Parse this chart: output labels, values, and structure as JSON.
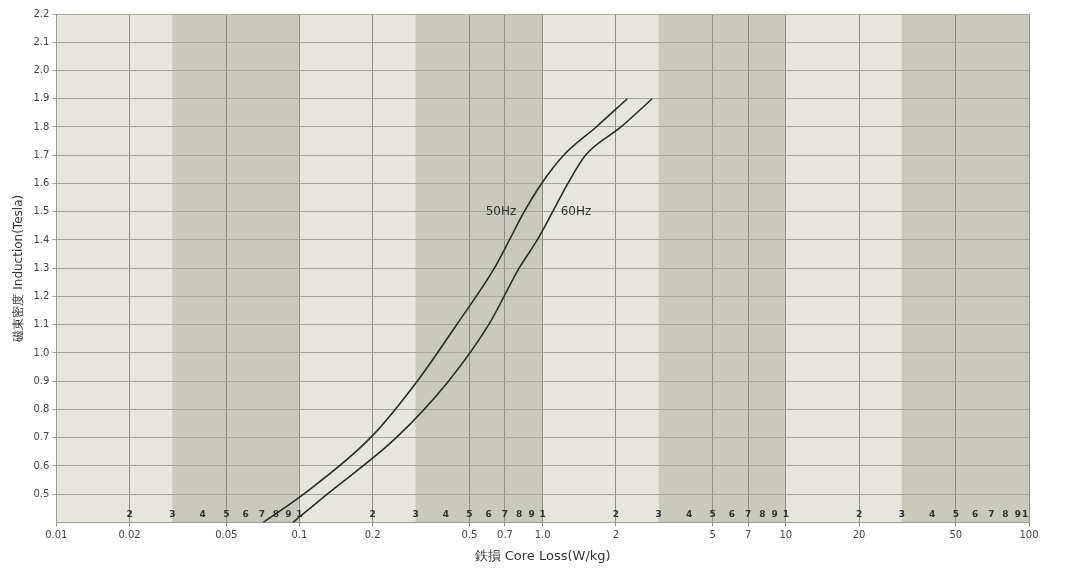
{
  "chart_data": {
    "type": "line",
    "xlabel": "鉄損 Core Loss(W/kg)",
    "ylabel": "磁束密度 Induction(Tesla)",
    "log": "x",
    "grid": true,
    "legend": false,
    "xlim": [
      0.01,
      100
    ],
    "ylim": [
      0.4,
      2.2
    ],
    "xticks": [
      0.01,
      0.02,
      0.05,
      0.1,
      0.2,
      0.5,
      0.7,
      {
        "value": 1,
        "label": "1.0"
      },
      2,
      5,
      7,
      10,
      20,
      50,
      100
    ],
    "yticks": [
      0.5,
      0.6,
      0.7,
      0.8,
      0.9,
      {
        "value": 1,
        "label": "1.0"
      },
      1.1,
      1.2,
      1.3,
      1.4,
      1.5,
      1.6,
      1.7,
      1.8,
      1.9,
      {
        "value": 2,
        "label": "2.0"
      },
      2.1,
      2.2
    ],
    "annotations": [
      "2",
      "3",
      "4",
      "5",
      "6",
      "7",
      "8",
      "9",
      "1",
      "2",
      "3",
      "4",
      "5",
      "6",
      "7",
      "8",
      "9",
      "1",
      "2",
      "3",
      "4",
      "5",
      "6",
      "7",
      "8",
      "9",
      "1",
      "2",
      "3",
      "4",
      "5",
      "6",
      "7",
      "8",
      "9",
      "1"
    ],
    "bands": [
      {
        "axis": "x",
        "from": 0.03,
        "to": 0.1,
        "color": "#c9c9bd"
      },
      {
        "axis": "x",
        "from": 0.3,
        "to": 1,
        "color": "#c9c9bd"
      },
      {
        "axis": "x",
        "from": 3,
        "to": 10,
        "color": "#c9c9bd"
      },
      {
        "axis": "x",
        "from": 30,
        "to": 100,
        "color": "#c9c9bd"
      }
    ],
    "series": [
      {
        "name": "50Hz",
        "color": "#2b2b2b",
        "x": [
          0.071,
          0.104,
          0.196,
          0.305,
          0.443,
          0.633,
          0.73,
          0.84,
          0.99,
          1.22,
          1.66,
          2.23
        ],
        "values": [
          0.4,
          0.5,
          0.7,
          0.9,
          1.1,
          1.3,
          1.4,
          1.5,
          1.6,
          1.7,
          1.8,
          1.9
        ]
      },
      {
        "name": "60Hz",
        "color": "#2b2b2b",
        "x": [
          0.094,
          0.13,
          0.25,
          0.41,
          0.6,
          0.8,
          0.95,
          1.1,
          1.27,
          1.5,
          2.1,
          2.82
        ],
        "values": [
          0.4,
          0.5,
          0.7,
          0.9,
          1.1,
          1.3,
          1.4,
          1.5,
          1.6,
          1.7,
          1.8,
          1.9
        ]
      }
    ]
  }
}
